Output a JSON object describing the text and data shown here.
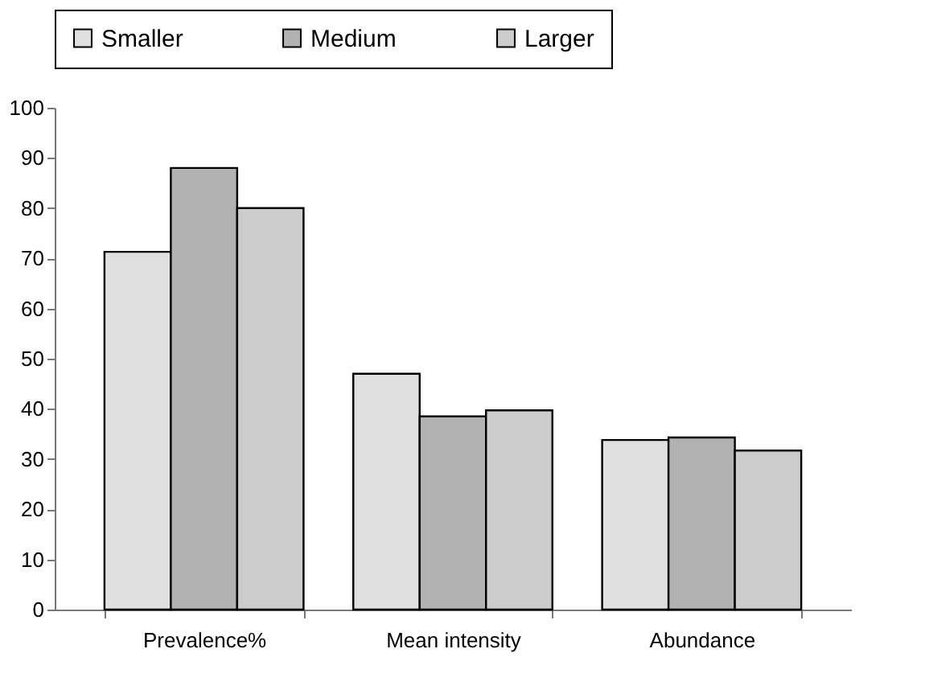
{
  "chart_data": {
    "type": "bar",
    "categories": [
      "Prevalence%",
      "Mean intensity",
      "Abundance"
    ],
    "series": [
      {
        "name": "Smaller",
        "color": "#e0e0e0",
        "values": [
          71.3,
          47,
          33.8
        ]
      },
      {
        "name": "Medium",
        "color": "#b2b2b2",
        "values": [
          88,
          38.5,
          34.3
        ]
      },
      {
        "name": "Larger",
        "color": "#cccccc",
        "values": [
          80,
          39.7,
          31.7
        ]
      }
    ],
    "ylim": [
      0,
      100
    ],
    "yticks": [
      0,
      10,
      20,
      30,
      40,
      50,
      60,
      70,
      80,
      90,
      100
    ],
    "grid": false,
    "legend": "top"
  }
}
